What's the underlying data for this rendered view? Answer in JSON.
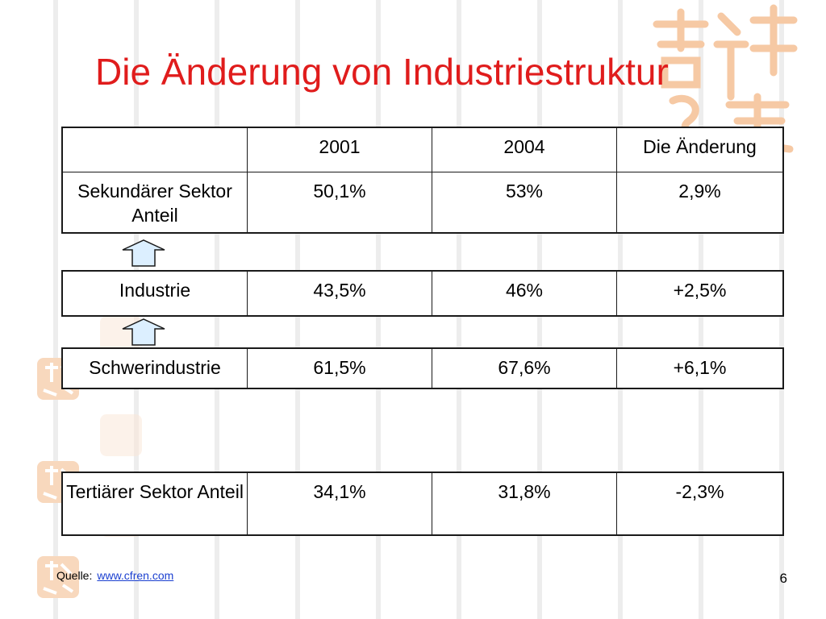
{
  "slide": {
    "title": "Die Änderung von Industriestruktur",
    "page_number": "6"
  },
  "tables": {
    "main": {
      "header": [
        "",
        "2001",
        "2004",
        "Die Änderung"
      ],
      "row": [
        "Sekundärer Sektor Anteil",
        "50,1%",
        "53%",
        "2,9%"
      ]
    },
    "industrie": [
      "Industrie",
      "43,5%",
      "46%",
      "+2,5%"
    ],
    "schwerindustrie": [
      "Schwerindustrie",
      "61,5%",
      "67,6%",
      "+6,1%"
    ],
    "tertiaer": [
      "Tertiärer  Sektor Anteil",
      "34,1%",
      "31,8%",
      "-2,3%"
    ]
  },
  "footer": {
    "source_label": "Quelle:",
    "source_link": "www.cfren.com"
  },
  "colors": {
    "title": "#e01c1c",
    "arrow_fill": "#dcefff",
    "logo_tint": "#f6c9a4",
    "link": "#1a3fd0"
  },
  "icons": {
    "arrow": "up-arrow-icon",
    "logo": "calligraphy-logo"
  }
}
